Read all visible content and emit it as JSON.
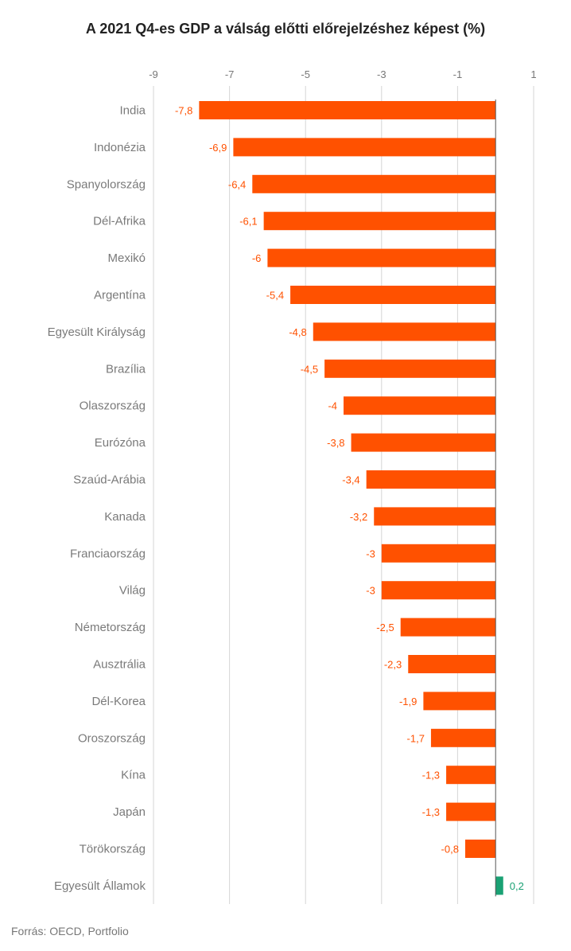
{
  "chart_data": {
    "type": "bar",
    "orientation": "horizontal",
    "title": "A 2021 Q4-es GDP a válság előtti előrejelzéshez képest (%)",
    "xlim": [
      -9,
      1
    ],
    "xticks": [
      -9,
      -7,
      -5,
      -3,
      -1,
      1
    ],
    "grid": true,
    "categories": [
      "India",
      "Indonézia",
      "Spanyolország",
      "Dél-Afrika",
      "Mexikó",
      "Argentína",
      "Egyesült Királyság",
      "Brazília",
      "Olaszország",
      "Eurózóna",
      "Szaúd-Arábia",
      "Kanada",
      "Franciaország",
      "Világ",
      "Németország",
      "Ausztrália",
      "Dél-Korea",
      "Oroszország",
      "Kína",
      "Japán",
      "Törökország",
      "Egyesült Államok"
    ],
    "values": [
      -7.8,
      -6.9,
      -6.4,
      -6.1,
      -6,
      -5.4,
      -4.8,
      -4.5,
      -4,
      -3.8,
      -3.4,
      -3.2,
      -3,
      -3,
      -2.5,
      -2.3,
      -1.9,
      -1.7,
      -1.3,
      -1.3,
      -0.8,
      0.2
    ],
    "value_labels": [
      "-7,8",
      "-6,9",
      "-6,4",
      "-6,1",
      "-6",
      "-5,4",
      "-4,8",
      "-4,5",
      "-4",
      "-3,8",
      "-3,4",
      "-3,2",
      "-3",
      "-3",
      "-2,5",
      "-2,3",
      "-1,9",
      "-1,7",
      "-1,3",
      "-1,3",
      "-0,8",
      "0,2"
    ],
    "colors": {
      "negative": "#ff5100",
      "positive": "#1aa174",
      "grid": "#d6d6d6",
      "zero_line": "#555555"
    }
  },
  "source": "Forrás: OECD, Portfolio"
}
